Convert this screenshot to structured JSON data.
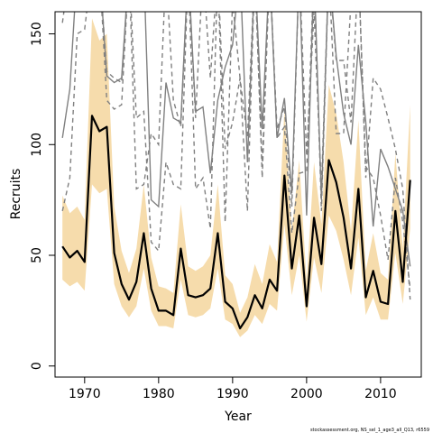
{
  "chart_data": {
    "type": "line",
    "xlabel": "Year",
    "ylabel": "Recruits",
    "footnote": "stockassessment.org, NS_sel_1_age3_all_Q13, r6559",
    "xlim": [
      1966,
      2015.5
    ],
    "ylim": [
      -5,
      160
    ],
    "xticks": [
      1970,
      1980,
      1990,
      2000,
      2010
    ],
    "yticks": [
      0,
      50,
      100,
      150
    ],
    "grid": false,
    "legend": "none",
    "colors": {
      "band": "#f6dcac",
      "estimate": "#000000",
      "runs": "#808080"
    },
    "years": [
      1967,
      1968,
      1969,
      1970,
      1971,
      1972,
      1973,
      1974,
      1975,
      1976,
      1977,
      1978,
      1979,
      1980,
      1981,
      1982,
      1983,
      1984,
      1985,
      1986,
      1987,
      1988,
      1989,
      1990,
      1991,
      1992,
      1993,
      1994,
      1995,
      1996,
      1997,
      1998,
      1999,
      2000,
      2001,
      2002,
      2003,
      2004,
      2005,
      2006,
      2007,
      2008,
      2009,
      2010,
      2011,
      2012,
      2013,
      2014
    ],
    "estimate": [
      54,
      49,
      52,
      47,
      113,
      106,
      108,
      51,
      37,
      30,
      38,
      60,
      35,
      25,
      25,
      23,
      53,
      32,
      31,
      32,
      35,
      60,
      29,
      26,
      17,
      22,
      32,
      26,
      39,
      34,
      86,
      44,
      68,
      27,
      67,
      46,
      93,
      83,
      67,
      44,
      80,
      31,
      43,
      29,
      28,
      70,
      38,
      84
    ],
    "lower": [
      39,
      36,
      38,
      34,
      82,
      78,
      80,
      37,
      27,
      22,
      27,
      44,
      25,
      18,
      18,
      17,
      39,
      23,
      22,
      23,
      26,
      44,
      21,
      19,
      13,
      16,
      23,
      19,
      28,
      25,
      64,
      32,
      50,
      20,
      49,
      33,
      68,
      61,
      48,
      32,
      58,
      23,
      31,
      21,
      21,
      51,
      28,
      62
    ],
    "upper": [
      77,
      69,
      72,
      66,
      157,
      147,
      150,
      72,
      52,
      42,
      53,
      82,
      49,
      36,
      35,
      33,
      73,
      45,
      43,
      45,
      50,
      82,
      41,
      37,
      24,
      31,
      46,
      37,
      55,
      47,
      116,
      61,
      93,
      38,
      92,
      64,
      127,
      114,
      92,
      61,
      111,
      43,
      60,
      42,
      39,
      96,
      53,
      118
    ],
    "series": [
      {
        "style": "solid",
        "values": [
          103,
          125,
          180,
          180,
          180,
          180,
          131,
          128,
          130,
          180,
          180,
          180,
          75,
          72,
          128,
          112,
          110,
          180,
          115,
          117,
          87,
          120,
          135,
          145,
          180,
          92,
          180,
          107,
          180,
          103,
          121,
          78,
          180,
          68,
          180,
          75,
          180,
          140,
          114,
          100,
          145,
          110,
          63,
          98,
          90,
          80,
          70,
          45
        ]
      },
      {
        "style": "dashed",
        "values": [
          70,
          85,
          150,
          152,
          180,
          180,
          133,
          130,
          128,
          180,
          80,
          82,
          105,
          100,
          180,
          120,
          108,
          180,
          80,
          85,
          62,
          180,
          98,
          110,
          130,
          103,
          180,
          90,
          180,
          107,
          117,
          72,
          180,
          95,
          160,
          80,
          180,
          105,
          105,
          165,
          180,
          90,
          85,
          68,
          48,
          85,
          65,
          35
        ]
      },
      {
        "style": "dashed",
        "values": [
          155,
          180,
          180,
          180,
          180,
          180,
          120,
          116,
          118,
          180,
          112,
          115,
          56,
          52,
          92,
          82,
          80,
          180,
          112,
          180,
          130,
          180,
          65,
          165,
          130,
          70,
          180,
          85,
          180,
          103,
          108,
          60,
          87,
          88,
          180,
          70,
          180,
          138,
          138,
          110,
          180,
          85,
          130,
          125,
          112,
          98,
          80,
          30
        ]
      }
    ]
  }
}
